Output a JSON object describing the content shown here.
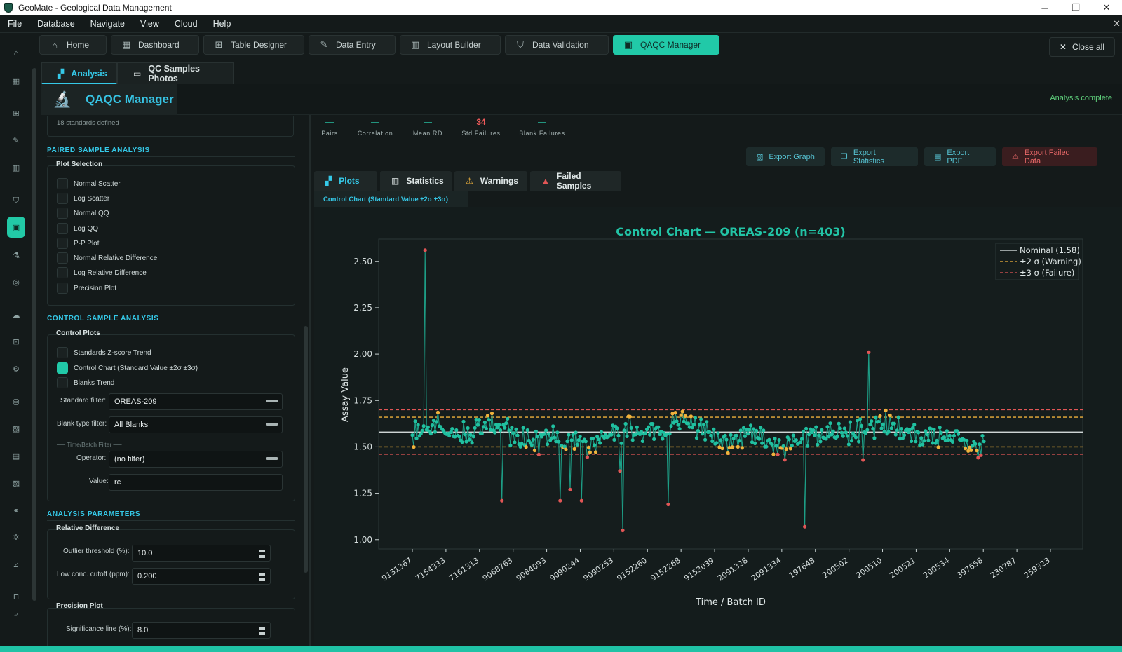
{
  "window": {
    "title": "GeoMate - Geological Data Management"
  },
  "menu": [
    "File",
    "Database",
    "Navigate",
    "View",
    "Cloud",
    "Help"
  ],
  "top_tabs": [
    {
      "label": "Home",
      "icon": "home-icon"
    },
    {
      "label": "Dashboard",
      "icon": "dashboard-icon"
    },
    {
      "label": "Table Designer",
      "icon": "table-icon"
    },
    {
      "label": "Data Entry",
      "icon": "edit-icon"
    },
    {
      "label": "Layout Builder",
      "icon": "columns-icon"
    },
    {
      "label": "Data Validation",
      "icon": "shield-icon"
    },
    {
      "label": "QAQC Manager",
      "icon": "clipboard-icon",
      "active": true
    }
  ],
  "close_all": "Close all",
  "sub_tabs": [
    {
      "label": "Analysis",
      "active": true
    },
    {
      "label": "QC Samples Photos"
    }
  ],
  "header": {
    "title": "QAQC Manager",
    "status": "Analysis complete"
  },
  "left": {
    "hint": "18 standards defined",
    "paired": {
      "section": "PAIRED SAMPLE ANALYSIS",
      "box": "Plot Selection",
      "items": [
        "Normal Scatter",
        "Log Scatter",
        "Normal QQ",
        "Log QQ",
        "P-P Plot",
        "Normal Relative Difference",
        "Log Relative Difference",
        "Precision Plot"
      ]
    },
    "control": {
      "section": "CONTROL SAMPLE ANALYSIS",
      "box": "Control Plots",
      "items": [
        {
          "label": "Standards Z-score Trend",
          "checked": false
        },
        {
          "label": "Control Chart (Standard Value ±2σ ±3σ)",
          "checked": true
        },
        {
          "label": "Blanks Trend",
          "checked": false
        }
      ],
      "standard_filter_label": "Standard filter:",
      "standard_filter_value": "OREAS-209",
      "blank_filter_label": "Blank type filter:",
      "blank_filter_value": "All Blanks",
      "divider": "── Time/Batch Filter ──",
      "operator_label": "Operator:",
      "operator_value": "(no filter)",
      "value_label": "Value:",
      "value_value": "rc"
    },
    "params": {
      "section": "ANALYSIS PARAMETERS",
      "rd_box": "Relative Difference",
      "outlier_label": "Outlier threshold (%):",
      "outlier_value": "10.0",
      "lowconc_label": "Low conc. cutoff (ppm):",
      "lowconc_value": "0.200",
      "precision_box": "Precision Plot",
      "sig_label": "Significance line (%):",
      "sig_value": "8.0"
    }
  },
  "stats": [
    {
      "value": "—",
      "label": "Pairs"
    },
    {
      "value": "—",
      "label": "Correlation"
    },
    {
      "value": "—",
      "label": "Mean RD"
    },
    {
      "value": "34",
      "label": "Std Failures",
      "red": true
    },
    {
      "value": "—",
      "label": "Blank Failures"
    }
  ],
  "export_buttons": [
    {
      "label": "Export Graph",
      "icon": "image-icon"
    },
    {
      "label": "Export Statistics",
      "icon": "copy-icon"
    },
    {
      "label": "Export PDF",
      "icon": "document-icon"
    },
    {
      "label": "Export Failed Data",
      "icon": "warning-icon",
      "danger": true
    }
  ],
  "plot_tabs": [
    {
      "label": "Plots",
      "icon": "chart-icon",
      "active": true
    },
    {
      "label": "Statistics",
      "icon": "bar-chart-icon"
    },
    {
      "label": "Warnings",
      "icon": "warning-icon"
    },
    {
      "label": "Failed Samples",
      "icon": "alarm-icon"
    }
  ],
  "control_chart_label": "Control Chart (Standard Value ±2σ ±3σ)",
  "colors": {
    "accent": "#21c9a8",
    "title": "#35c9e8",
    "warning": "#f0b23c",
    "failure": "#e25656",
    "ok": "#20c0a0"
  },
  "chart_data": {
    "type": "line",
    "title": "Control Chart — OREAS-209  (n=403)",
    "xlabel": "Time / Batch ID",
    "ylabel": "Assay Value",
    "n": 403,
    "nominal": 1.58,
    "sd": 0.04,
    "ylim": [
      0.95,
      2.62
    ],
    "yticks": [
      1.0,
      1.25,
      1.5,
      1.75,
      2.0,
      2.25,
      2.5
    ],
    "ytick_labels": [
      "1.00",
      "1.25",
      "1.50",
      "1.75",
      "2.00",
      "2.25",
      "2.50"
    ],
    "xtick_labels": [
      "9131367",
      "7154333",
      "7161313",
      "9068763",
      "9084093",
      "9090244",
      "9090253",
      "9152260",
      "9152268",
      "9153039",
      "2091328",
      "2091334",
      "197648",
      "200502",
      "200510",
      "200521",
      "200534",
      "397658",
      "230787",
      "259323"
    ],
    "legend": [
      {
        "label": "Nominal (1.58)",
        "style": "solid",
        "color": "#e8eeee"
      },
      {
        "label": "±2 σ (Warning)",
        "style": "dashed",
        "color": "#f0b23c"
      },
      {
        "label": "±3 σ (Failure)",
        "style": "dashed",
        "color": "#e25656"
      }
    ],
    "legend_position": "top-right",
    "outliers": [
      {
        "i": 9,
        "y": 2.56
      },
      {
        "i": 63,
        "y": 1.21
      },
      {
        "i": 104,
        "y": 1.21
      },
      {
        "i": 111,
        "y": 1.27
      },
      {
        "i": 119,
        "y": 1.21
      },
      {
        "i": 146,
        "y": 1.37
      },
      {
        "i": 148,
        "y": 1.05
      },
      {
        "i": 180,
        "y": 1.19
      },
      {
        "i": 276,
        "y": 1.07
      },
      {
        "i": 317,
        "y": 1.43
      },
      {
        "i": 321,
        "y": 2.01
      }
    ],
    "seed": 20911
  }
}
